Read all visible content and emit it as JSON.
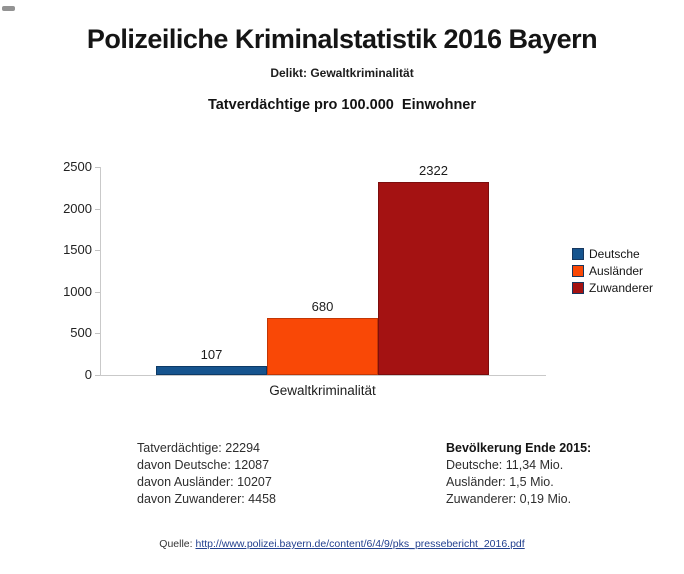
{
  "title": "Polizeiliche Kriminalstatistik 2016 Bayern",
  "subtitle": "Delikt: Gewaltkriminalität",
  "chart_title": "Tatverdächtige pro 100.000  Einwohner",
  "chart_data": {
    "type": "bar",
    "categories": [
      "Gewaltkriminalität"
    ],
    "series": [
      {
        "name": "Deutsche",
        "values": [
          107
        ],
        "color": "#16548e",
        "border": "#0d3a66"
      },
      {
        "name": "Ausländer",
        "values": [
          680
        ],
        "color": "#f94806",
        "border": "#c23604"
      },
      {
        "name": "Zuwanderer",
        "values": [
          2322
        ],
        "color": "#a41212",
        "border": "#7c0d0d"
      }
    ],
    "title": "Tatverdächtige pro 100.000 Einwohner",
    "xlabel": "Gewaltkriminalität",
    "ylabel": "",
    "ylim": [
      0,
      2500
    ],
    "yticks": [
      0,
      500,
      1000,
      1500,
      2000,
      2500
    ],
    "grid": false,
    "legend_position": "right",
    "bar_labels": [
      107,
      680,
      2322
    ]
  },
  "notes_left": {
    "lines": [
      "Tatverdächtige: 22294",
      "davon Deutsche: 12087",
      "davon Ausländer: 10207",
      "davon Zuwanderer: 4458"
    ]
  },
  "notes_right": {
    "heading": "Bevölkerung Ende 2015:",
    "lines": [
      "Deutsche: 11,34 Mio.",
      "Ausländer: 1,5 Mio.",
      "Zuwanderer: 0,19 Mio."
    ]
  },
  "source": {
    "label": "Quelle: ",
    "url_text": "http://www.polizei.bayern.de/content/6/4/9/pks_pressebericht_2016.pdf"
  },
  "colors": {
    "axis": "#c9c9c9",
    "link": "#23418f",
    "legend_border": "#17375e"
  }
}
